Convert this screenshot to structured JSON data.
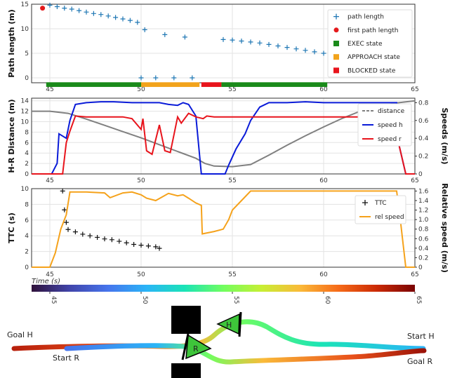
{
  "chart_data": [
    {
      "type": "scatter",
      "ylabel": "Path length (m)",
      "xlim": [
        44,
        65
      ],
      "ylim": [
        -1,
        15
      ],
      "xticks": [
        "45",
        "50",
        "55",
        "60",
        "65"
      ],
      "yticks": [
        "0",
        "5",
        "10",
        "15"
      ],
      "legend": [
        "path length",
        "first path length",
        "EXEC state",
        "APPROACH state",
        "BLOCKED state"
      ],
      "legend_position": "top-right",
      "grid": true,
      "series": [
        {
          "name": "path length",
          "marker": "+",
          "color": "#1f77b4",
          "x": [
            45,
            45.4,
            45.8,
            46.2,
            46.6,
            47,
            47.4,
            47.8,
            48.2,
            48.6,
            49,
            49.4,
            49.8,
            50.2,
            51.3,
            52.4,
            54.5,
            55,
            55.5,
            56,
            56.5,
            57,
            57.5,
            58,
            58.5,
            59,
            59.5,
            60,
            60.5,
            61,
            61.5,
            62,
            62.5,
            63,
            63.5,
            64,
            64.5
          ],
          "y": [
            14.8,
            14.5,
            14.2,
            14,
            13.7,
            13.4,
            13.1,
            12.9,
            12.6,
            12.3,
            12,
            11.7,
            11.3,
            9.8,
            8.8,
            8.3,
            7.8,
            7.7,
            7.5,
            7.3,
            7.1,
            6.8,
            6.5,
            6.2,
            5.9,
            5.6,
            5.3,
            5,
            4.7,
            4.4,
            4.1,
            3.8,
            3.5,
            3.2,
            2.9,
            2.6,
            2.4
          ]
        },
        {
          "name": "path length",
          "marker": "+",
          "color": "#1f77b4",
          "x": [
            50,
            50.8,
            51.8,
            52.8
          ],
          "y": [
            0,
            0,
            0,
            0
          ]
        },
        {
          "name": "first path length",
          "marker": "o",
          "color": "#e41a1c",
          "x": [
            44.6
          ],
          "y": [
            14.2
          ]
        }
      ],
      "states": [
        {
          "name": "EXEC state",
          "color": "#1a8a1a",
          "from": 44.8,
          "to": 50
        },
        {
          "name": "APPROACH state",
          "color": "#f2a31b",
          "from": 50,
          "to": 53.2
        },
        {
          "name": "BLOCKED state",
          "color": "#e8141c",
          "from": 53.3,
          "to": 54.4
        },
        {
          "name": "EXEC state",
          "color": "#1a8a1a",
          "from": 54.4,
          "to": 60.2
        }
      ]
    },
    {
      "type": "line",
      "ylabel": "H-R Distance (m)",
      "ylabel_right": "Speeds (m/s)",
      "xlim": [
        44,
        65
      ],
      "ylim": [
        0,
        14.5
      ],
      "ylim_right": [
        0,
        0.85
      ],
      "xticks": [
        "45",
        "50",
        "55",
        "60",
        "65"
      ],
      "yticks": [
        "0",
        "2",
        "4",
        "6",
        "8",
        "10",
        "12",
        "14"
      ],
      "yticks_right": [
        "0",
        "0.2",
        "0.4",
        "0.6",
        "0.8"
      ],
      "legend": [
        "distance",
        "speed h",
        "speed r"
      ],
      "legend_position": "right",
      "grid": true,
      "series": [
        {
          "name": "distance",
          "color": "#808080",
          "x": [
            44,
            45,
            46,
            47,
            48,
            49,
            50,
            51,
            52,
            53,
            53.5,
            54,
            55,
            56,
            57,
            58,
            59,
            60,
            61,
            62,
            63,
            64,
            65
          ],
          "y": [
            12,
            12,
            11.6,
            10.5,
            9.3,
            8.1,
            6.9,
            5.6,
            4.3,
            3,
            2,
            1.5,
            1.4,
            1.8,
            3.6,
            5.5,
            7.3,
            9,
            10.6,
            12,
            13,
            13.6,
            14
          ]
        },
        {
          "name": "speed h",
          "color": "#0a1bd8",
          "axis": "right",
          "x": [
            44,
            45.1,
            45.4,
            45.5,
            45.9,
            46.1,
            46.4,
            47,
            47.8,
            48.5,
            49.5,
            50,
            51,
            51.5,
            52,
            52.3,
            52.6,
            53,
            53.3,
            54,
            54.6,
            54.8,
            55.2,
            55.7,
            56,
            56.5,
            57,
            58,
            59,
            60,
            61,
            62,
            63,
            63.5,
            64,
            64.1,
            64.5,
            65
          ],
          "y": [
            0,
            0,
            0.12,
            0.45,
            0.4,
            0.6,
            0.78,
            0.8,
            0.81,
            0.81,
            0.8,
            0.8,
            0.8,
            0.78,
            0.77,
            0.8,
            0.78,
            0.65,
            0,
            0,
            0,
            0.1,
            0.28,
            0.45,
            0.6,
            0.75,
            0.8,
            0.8,
            0.81,
            0.8,
            0.8,
            0.8,
            0.8,
            0.8,
            0.8,
            0.35,
            0,
            0
          ]
        },
        {
          "name": "speed r",
          "color": "#e8141c",
          "axis": "right",
          "x": [
            44,
            45.7,
            45.9,
            46.1,
            46.4,
            47,
            48,
            49,
            49.5,
            50,
            50.1,
            50.3,
            50.6,
            51,
            51.3,
            51.6,
            52,
            52.2,
            52.6,
            53,
            53.4,
            53.6,
            54,
            55,
            56,
            57,
            58,
            59,
            60,
            61,
            62,
            63,
            63.5,
            64,
            64.1,
            64.5,
            65
          ],
          "y": [
            0,
            0,
            0.35,
            0.48,
            0.65,
            0.64,
            0.64,
            0.64,
            0.62,
            0.5,
            0.62,
            0.26,
            0.22,
            0.55,
            0.26,
            0.24,
            0.64,
            0.57,
            0.68,
            0.64,
            0.62,
            0.65,
            0.64,
            0.64,
            0.64,
            0.64,
            0.64,
            0.64,
            0.64,
            0.64,
            0.64,
            0.64,
            0.64,
            0.64,
            0.35,
            0,
            0
          ]
        }
      ]
    },
    {
      "type": "line",
      "ylabel": "TTC (s)",
      "ylabel_right": "Relative speed (m/s)",
      "xlabel": "Time (s)",
      "xlim": [
        44,
        65
      ],
      "ylim": [
        0,
        10
      ],
      "ylim_right": [
        0,
        1.65
      ],
      "xticks": [
        "45",
        "50",
        "55",
        "60",
        "65"
      ],
      "yticks": [
        "0",
        "2",
        "4",
        "6",
        "8",
        "10"
      ],
      "yticks_right": [
        "0",
        "0.2",
        "0.4",
        "0.6",
        "0.8",
        "1.0",
        "1.2",
        "1.4",
        "1.6"
      ],
      "legend": [
        "TTC",
        "rel speed"
      ],
      "legend_position": "right",
      "grid": true,
      "series": [
        {
          "name": "TTC",
          "marker": "+",
          "color": "#111111",
          "x": [
            45.7,
            45.8,
            45.9,
            46,
            46.4,
            46.8,
            47.2,
            47.6,
            48,
            48.4,
            48.8,
            49.2,
            49.6,
            50,
            50.4,
            50.8,
            51
          ],
          "y": [
            9.7,
            7.3,
            5.7,
            4.8,
            4.5,
            4.2,
            4,
            3.8,
            3.6,
            3.5,
            3.3,
            3.1,
            2.9,
            2.8,
            2.7,
            2.6,
            2.4
          ]
        },
        {
          "name": "rel speed",
          "color": "#f5a21b",
          "axis": "right",
          "x": [
            44,
            45,
            45.3,
            45.6,
            45.9,
            46.1,
            47,
            48,
            48.3,
            49,
            49.5,
            50,
            50.3,
            50.8,
            51.5,
            52,
            52.3,
            52.6,
            53,
            53.3,
            53.35,
            54,
            54.5,
            54.8,
            55,
            55.5,
            56,
            57,
            58,
            59,
            60,
            61,
            62,
            63,
            63.5,
            64,
            64.2,
            64.5,
            65
          ],
          "y": [
            0,
            0,
            0.3,
            0.8,
            1.1,
            1.58,
            1.58,
            1.56,
            1.46,
            1.56,
            1.58,
            1.52,
            1.45,
            1.4,
            1.55,
            1.5,
            1.52,
            1.45,
            1.35,
            1.3,
            0.7,
            0.75,
            0.8,
            1.0,
            1.2,
            1.4,
            1.6,
            1.6,
            1.6,
            1.6,
            1.6,
            1.6,
            1.6,
            1.6,
            1.6,
            1.6,
            1.0,
            0,
            0
          ]
        }
      ]
    }
  ],
  "colorbar": {
    "ticks": [
      "45",
      "50",
      "55",
      "60",
      "65"
    ],
    "range": [
      44,
      65
    ]
  },
  "map": {
    "labels": {
      "goal_h": "Goal H",
      "start_r": "Start R",
      "start_h": "Start H",
      "goal_r": "Goal R"
    },
    "robot_label": "R",
    "human_label": "H"
  }
}
